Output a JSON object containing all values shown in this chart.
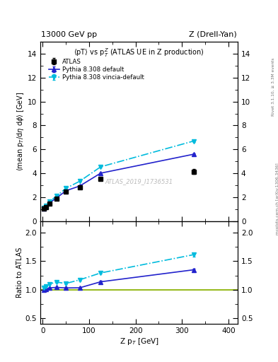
{
  "title_top": "13000 GeV pp",
  "title_top_right": "Z (Drell-Yan)",
  "plot_title": "$\\langle$pT$\\rangle$ vs p$_T^Z$ (ATLAS UE in Z production)",
  "ylabel_main": "$\\langle$mean p$_T$/d$\\eta$ d$\\phi$$\\rangle$ [GeV]",
  "ylabel_ratio": "Ratio to ATLAS",
  "xlabel": "Z p$_T$ [GeV]",
  "watermark": "ATLAS_2019_I1736531",
  "right_label": "mcplots.cern.ch [arXiv:1306.3436]",
  "right_label2": "Rivet 3.1.10, ≥ 3.3M events",
  "atlas_x": [
    2.5,
    7.5,
    15,
    30,
    50,
    80,
    125,
    325
  ],
  "atlas_y": [
    1.08,
    1.2,
    1.5,
    1.87,
    2.47,
    2.85,
    3.52,
    4.15
  ],
  "atlas_yerr": [
    0.05,
    0.05,
    0.06,
    0.07,
    0.08,
    0.1,
    0.12,
    0.2
  ],
  "py_def_x": [
    2.5,
    7.5,
    15,
    30,
    50,
    80,
    125,
    325
  ],
  "py_def_y": [
    1.08,
    1.22,
    1.55,
    1.95,
    2.55,
    2.95,
    4.02,
    5.6
  ],
  "py_def_yerr": [
    0.01,
    0.01,
    0.01,
    0.02,
    0.02,
    0.03,
    0.04,
    0.08
  ],
  "py_vin_x": [
    2.5,
    7.5,
    15,
    30,
    50,
    80,
    125,
    325
  ],
  "py_vin_y": [
    1.12,
    1.28,
    1.65,
    2.12,
    2.75,
    3.35,
    4.55,
    6.7
  ],
  "py_vin_yerr": [
    0.01,
    0.01,
    0.02,
    0.02,
    0.03,
    0.04,
    0.05,
    0.1
  ],
  "ratio_py_def_y": [
    1.0,
    1.015,
    1.033,
    1.042,
    1.032,
    1.035,
    1.14,
    1.35
  ],
  "ratio_py_def_yerr": [
    0.005,
    0.005,
    0.007,
    0.008,
    0.01,
    0.012,
    0.015,
    0.025
  ],
  "ratio_py_vin_y": [
    1.035,
    1.065,
    1.1,
    1.135,
    1.11,
    1.175,
    1.295,
    1.615
  ],
  "ratio_py_vin_yerr": [
    0.005,
    0.006,
    0.009,
    0.01,
    0.012,
    0.015,
    0.018,
    0.03
  ],
  "color_atlas": "#000000",
  "color_py_def": "#2222cc",
  "color_py_vin": "#00bbdd",
  "color_green": "#99bb22",
  "xlim": [
    -5,
    420
  ],
  "ylim_main": [
    0,
    15
  ],
  "ylim_ratio": [
    0.4,
    2.2
  ],
  "legend_atlas": "ATLAS",
  "legend_py_def": "Pythia 8.308 default",
  "legend_py_vin": "Pythia 8.308 vincia-default"
}
